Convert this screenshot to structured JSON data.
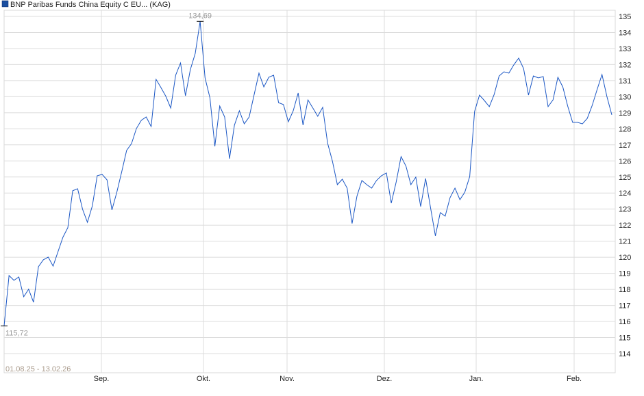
{
  "chart_data": {
    "type": "line",
    "title": "",
    "legend": {
      "label": "BNP Paribas Funds China Equity C EU... (KAG)",
      "placement": "top-left"
    },
    "series": [
      {
        "name": "BNP Paribas Funds China Equity C EU... (KAG)",
        "color": "#1a56c4",
        "values": [
          115.72,
          118.86,
          118.56,
          118.77,
          117.54,
          118.01,
          117.2,
          119.41,
          119.84,
          120.01,
          119.45,
          120.35,
          121.24,
          121.84,
          124.14,
          124.27,
          122.99,
          122.18,
          123.2,
          125.08,
          125.16,
          124.82,
          122.95,
          124.05,
          125.33,
          126.65,
          127.08,
          128.02,
          128.53,
          128.74,
          128.14,
          131.08,
          130.57,
          130.02,
          129.29,
          131.34,
          132.1,
          130.06,
          131.68,
          132.7,
          134.69,
          131.17,
          129.93,
          126.91,
          129.42,
          128.74,
          126.14,
          128.23,
          129.12,
          128.31,
          128.74,
          130.1,
          131.47,
          130.61,
          131.21,
          131.34,
          129.63,
          129.51,
          128.44,
          129.12,
          130.23,
          128.23,
          129.8,
          129.29,
          128.78,
          129.34,
          127.12,
          125.97,
          124.52,
          124.86,
          124.31,
          122.1,
          123.8,
          124.78,
          124.52,
          124.31,
          124.78,
          125.08,
          125.25,
          123.37,
          124.69,
          126.27,
          125.67,
          124.52,
          124.99,
          123.16,
          124.91,
          123.12,
          121.33,
          122.78,
          122.56,
          123.71,
          124.31,
          123.59,
          124.05,
          125.03,
          129.08,
          130.1,
          129.76,
          129.38,
          130.14,
          131.29,
          131.55,
          131.47,
          131.98,
          132.4,
          131.76,
          130.1,
          131.29,
          131.17,
          131.25,
          129.38,
          129.8,
          131.21,
          130.61,
          129.42,
          128.4,
          128.4,
          128.31,
          128.65,
          129.46,
          130.44,
          131.38,
          130.02,
          128.87
        ]
      }
    ],
    "x_tick_labels": [
      "Sep.",
      "Okt.",
      "Nov.",
      "Dez.",
      "Jan.",
      "Feb."
    ],
    "y_tick_labels": [
      "135",
      "134",
      "133",
      "132",
      "131",
      "130",
      "129",
      "128",
      "127",
      "126",
      "125",
      "124",
      "123",
      "122",
      "121",
      "120",
      "119",
      "118",
      "117",
      "116",
      "115",
      "114"
    ],
    "ylim": [
      113,
      135.4
    ],
    "y_axis_side": "right",
    "grid": true,
    "annotations": {
      "max_label": "134,69",
      "min_label": "115,72",
      "date_range": "01.08.25 - 13.02.26"
    }
  }
}
